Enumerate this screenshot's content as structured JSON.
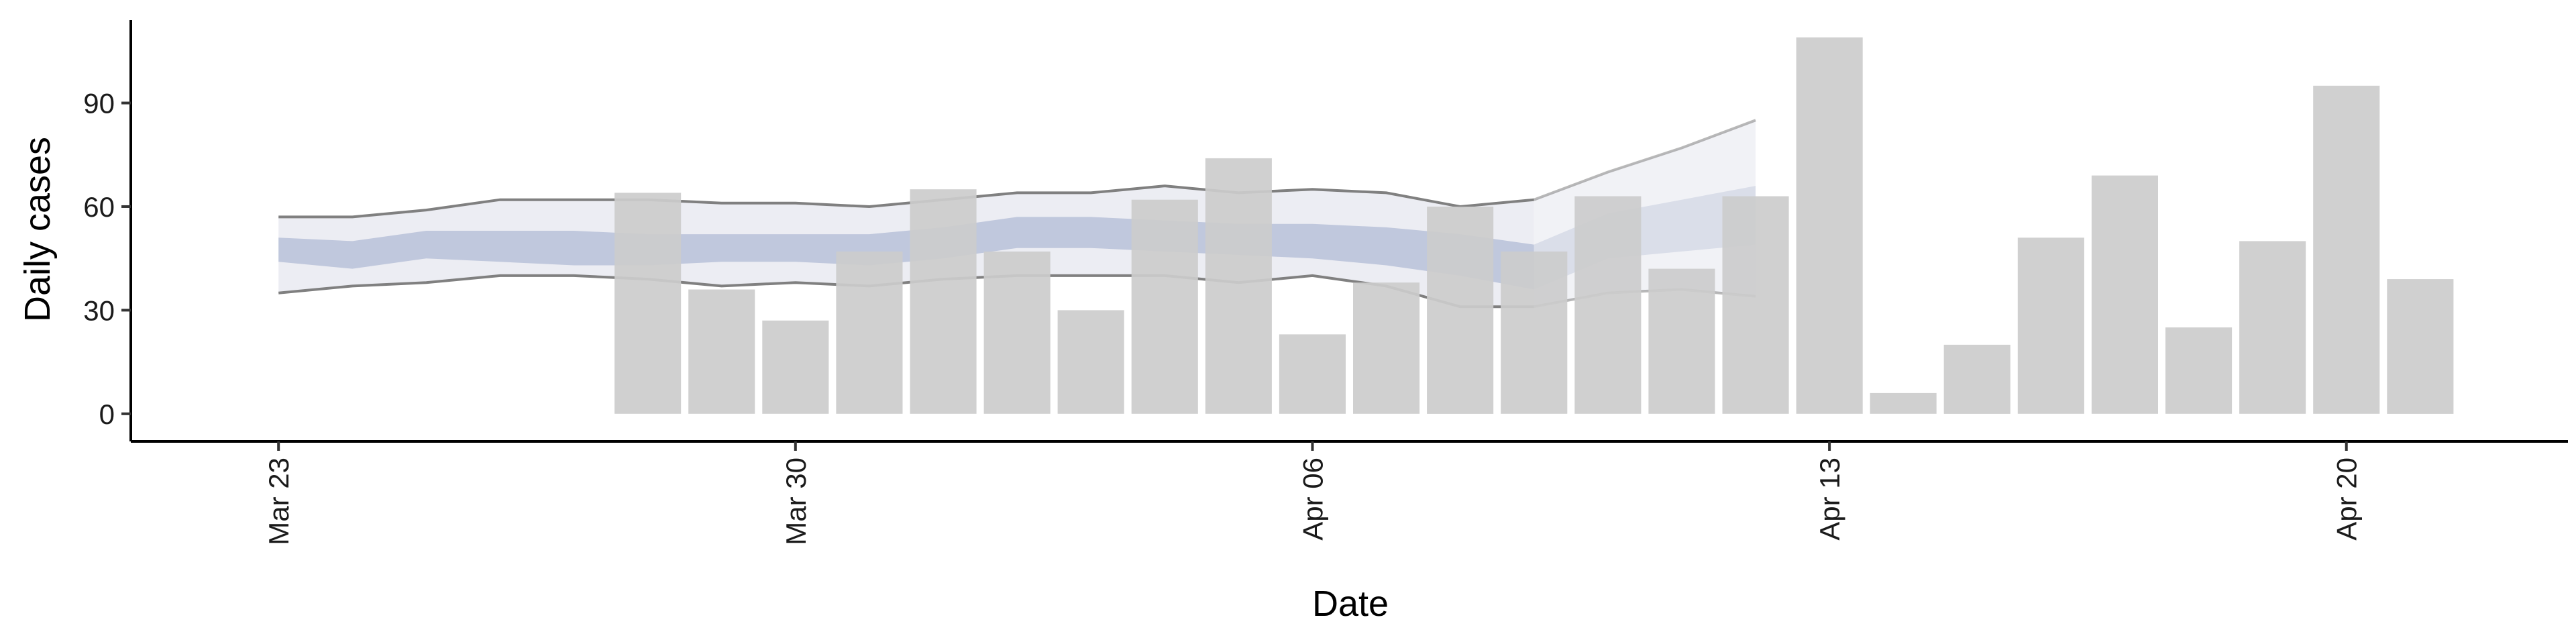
{
  "chart_data": {
    "type": "bar",
    "xlabel": "Date",
    "ylabel": "Daily cases",
    "x_range": [
      "2020-03-21",
      "2020-04-23"
    ],
    "ylim": [
      -8,
      114
    ],
    "yticks": [
      0,
      30,
      60,
      90
    ],
    "xticks": [
      {
        "date": "2020-03-23",
        "label": "Mar 23"
      },
      {
        "date": "2020-03-30",
        "label": "Mar 30"
      },
      {
        "date": "2020-04-06",
        "label": "Apr 06"
      },
      {
        "date": "2020-04-13",
        "label": "Apr 13"
      },
      {
        "date": "2020-04-20",
        "label": "Apr 20"
      }
    ],
    "grid": false,
    "legend": "none",
    "bars": {
      "color": "#cccccc",
      "dates": [
        "2020-03-28",
        "2020-03-29",
        "2020-03-30",
        "2020-03-31",
        "2020-04-01",
        "2020-04-02",
        "2020-04-03",
        "2020-04-04",
        "2020-04-05",
        "2020-04-06",
        "2020-04-07",
        "2020-04-08",
        "2020-04-09",
        "2020-04-10",
        "2020-04-11",
        "2020-04-12",
        "2020-04-13",
        "2020-04-14",
        "2020-04-15",
        "2020-04-16",
        "2020-04-17",
        "2020-04-18",
        "2020-04-19",
        "2020-04-20",
        "2020-04-21"
      ],
      "values": [
        64,
        36,
        27,
        47,
        65,
        47,
        30,
        62,
        74,
        23,
        38,
        60,
        47,
        63,
        42,
        63,
        109,
        6,
        20,
        51,
        69,
        25,
        50,
        95,
        39
      ]
    },
    "estimate": {
      "dates": [
        "2020-03-23",
        "2020-03-24",
        "2020-03-25",
        "2020-03-26",
        "2020-03-27",
        "2020-03-28",
        "2020-03-29",
        "2020-03-30",
        "2020-03-31",
        "2020-04-01",
        "2020-04-02",
        "2020-04-03",
        "2020-04-04",
        "2020-04-05",
        "2020-04-06",
        "2020-04-07",
        "2020-04-08",
        "2020-04-09",
        "2020-04-10",
        "2020-04-11",
        "2020-04-12"
      ],
      "outer_upper": [
        57,
        57,
        59,
        62,
        62,
        62,
        61,
        61,
        60,
        62,
        64,
        64,
        66,
        64,
        65,
        64,
        60,
        62,
        70,
        77,
        85
      ],
      "outer_lower": [
        35,
        37,
        38,
        40,
        40,
        39,
        37,
        38,
        37,
        39,
        40,
        40,
        40,
        38,
        40,
        37,
        31,
        31,
        35,
        36,
        34
      ],
      "inner_upper": [
        51,
        50,
        53,
        53,
        53,
        52,
        52,
        52,
        52,
        54,
        57,
        57,
        56,
        55,
        55,
        54,
        52,
        49,
        58,
        62,
        66
      ],
      "inner_lower": [
        44,
        42,
        45,
        44,
        43,
        43,
        44,
        44,
        43,
        45,
        48,
        48,
        47,
        46,
        45,
        43,
        40,
        36,
        45,
        47,
        49
      ],
      "band_color": "#ecedf3",
      "inner_color": "#b9c1d8",
      "line_color": "#808080",
      "faded_from": "2020-04-09"
    }
  }
}
